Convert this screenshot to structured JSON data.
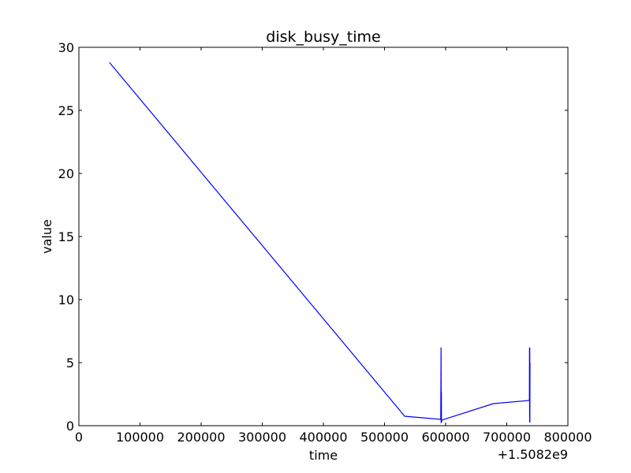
{
  "chart_data": {
    "type": "line",
    "title": "disk_busy_time",
    "xlabel": "time",
    "ylabel": "value",
    "x_offset_label": "+1.5082e9",
    "xlim": [
      0,
      800000
    ],
    "ylim": [
      0,
      30
    ],
    "x_ticks": [
      0,
      100000,
      200000,
      300000,
      400000,
      500000,
      600000,
      700000,
      800000
    ],
    "y_ticks": [
      0,
      5,
      10,
      15,
      20,
      25,
      30
    ],
    "grid": false,
    "legend": "none",
    "series": [
      {
        "color": "#0000ff",
        "x": [
          50000,
          533000,
          592000,
          592500,
          592700,
          593000,
          593200,
          594000,
          678000,
          737000,
          737200,
          737400,
          737600,
          737800,
          738000
        ],
        "y": [
          28.8,
          0.75,
          0.5,
          6.2,
          0.2,
          2.7,
          0.3,
          0.45,
          1.75,
          2.0,
          6.2,
          0.3,
          6.2,
          0.25,
          5.0
        ]
      }
    ]
  }
}
